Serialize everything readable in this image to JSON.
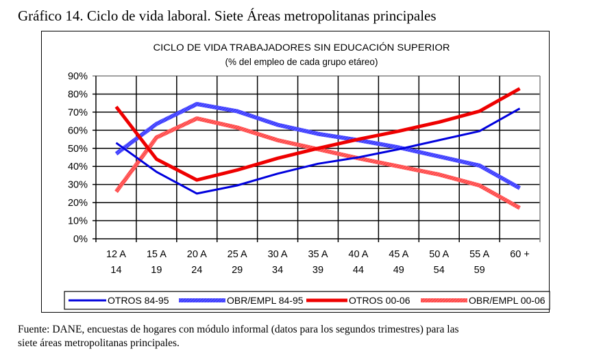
{
  "document": {
    "title": "Gráfico 14. Ciclo de vida laboral. Siete Áreas metropolitanas principales",
    "footer_line1": "Fuente: DANE, encuestas de hogares con módulo informal (datos para los segundos trimestres)  para las",
    "footer_line2": "siete áreas metropolitanas principales."
  },
  "chart_data": {
    "type": "line",
    "title": "CICLO DE VIDA TRABAJADORES SIN EDUCACIÓN SUPERIOR",
    "subtitle": "(% del empleo de cada grupo etáreo)",
    "xlabel": "",
    "ylabel": "",
    "ylim": [
      0,
      90
    ],
    "yticks": [
      0,
      10,
      20,
      30,
      40,
      50,
      60,
      70,
      80,
      90
    ],
    "ytick_labels": [
      "0%",
      "10%",
      "20%",
      "30%",
      "40%",
      "50%",
      "60%",
      "70%",
      "80%",
      "90%"
    ],
    "categories": [
      [
        "12 A",
        "14"
      ],
      [
        "15 A",
        "19"
      ],
      [
        "20 A",
        "24"
      ],
      [
        "25 A",
        "29"
      ],
      [
        "30 A",
        "34"
      ],
      [
        "35 A",
        "39"
      ],
      [
        "40 A",
        "44"
      ],
      [
        "45 A",
        "49"
      ],
      [
        "50 A",
        "54"
      ],
      [
        "55 A",
        "59"
      ],
      [
        "60 +",
        ""
      ]
    ],
    "grid": true,
    "legend_position": "bottom",
    "series": [
      {
        "name": "OTROS 84-95",
        "color": "#0000dd",
        "style": "thin-solid",
        "values": [
          53,
          37,
          25,
          29.5,
          36,
          41.5,
          45,
          49.5,
          54.5,
          59.5,
          72
        ]
      },
      {
        "name": "OBR/EMPL 84-95",
        "color": "#4a4aff",
        "style": "thick-hatched",
        "values": [
          47,
          63.5,
          74.5,
          70.5,
          63,
          58,
          54.5,
          50.5,
          45.5,
          40.5,
          28
        ]
      },
      {
        "name": "OTROS 00-06",
        "color": "#ee0000",
        "style": "thick-solid",
        "values": [
          73,
          44,
          32.5,
          38,
          44.5,
          50,
          55,
          59.5,
          64.5,
          70.5,
          83
        ]
      },
      {
        "name": "OBR/EMPL 00-06",
        "color": "#ff5555",
        "style": "thick-hatched",
        "values": [
          26,
          56,
          66.5,
          61.5,
          54.5,
          49.5,
          44.5,
          40,
          35.5,
          29.5,
          17
        ]
      }
    ]
  }
}
